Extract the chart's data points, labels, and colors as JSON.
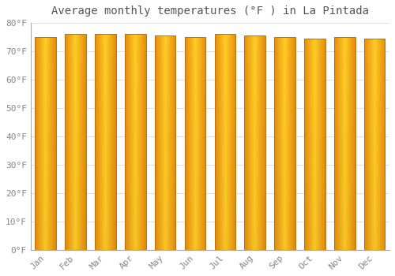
{
  "title": "Average monthly temperatures (°F ) in La Pintada",
  "months": [
    "Jan",
    "Feb",
    "Mar",
    "Apr",
    "May",
    "Jun",
    "Jul",
    "Aug",
    "Sep",
    "Oct",
    "Nov",
    "Dec"
  ],
  "values": [
    75,
    76,
    76,
    76,
    75.5,
    75,
    76,
    75.5,
    75,
    74.5,
    75,
    74.5
  ],
  "ylim": [
    0,
    80
  ],
  "yticks": [
    0,
    10,
    20,
    30,
    40,
    50,
    60,
    70,
    80
  ],
  "ytick_labels": [
    "0°F",
    "10°F",
    "20°F",
    "30°F",
    "40°F",
    "50°F",
    "60°F",
    "70°F",
    "80°F"
  ],
  "bar_color_center": "#FFD966",
  "bar_color_edge": "#E8961E",
  "bar_outline_color": "#C07010",
  "background_color": "#ffffff",
  "grid_color": "#e0e0e0",
  "title_fontsize": 10,
  "tick_fontsize": 8,
  "bar_width": 0.7,
  "figsize": [
    5.0,
    3.5
  ],
  "dpi": 100
}
